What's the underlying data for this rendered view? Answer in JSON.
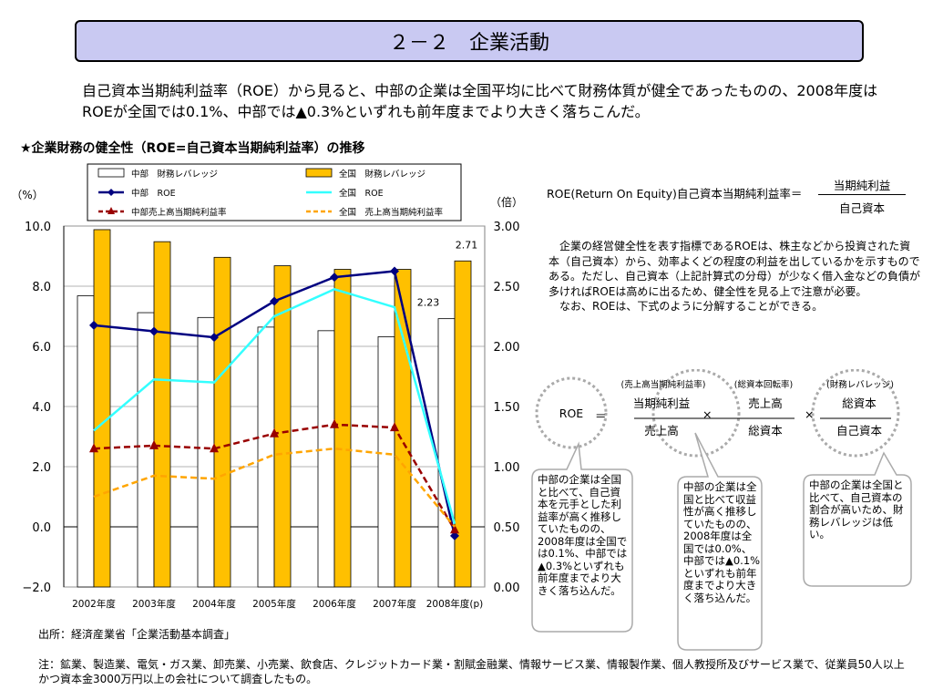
{
  "page": {
    "title": "２－２　企業活動",
    "lead": "自己資本当期純利益率（ROE）から見ると、中部の企業は全国平均に比べて財務体質が健全であったものの、2008年度はROEが全国では0.1%、中部では▲0.3%といずれも前年度までより大きく落ちこんだ。",
    "chart_heading": "★企業財務の健全性（ROE=自己資本当期純利益率）の推移",
    "source": "出所：経済産業省「企業活動基本調査」",
    "note": "注：鉱業、製造業、電気・ガス業、卸売業、小売業、飲食店、クレジットカード業・割賦金融業、情報サービス業、情報製作業、個人教授所及びサービス業で、従業員50人以上かつ資本金3000万円以上の会社について調査したもの。"
  },
  "formula": {
    "definition": "ROE(Return On Equity)自己資本当期純利益率＝",
    "numerator": "当期純利益",
    "denominator": "自己資本",
    "explanation_1": "　企業の経営健全性を表す指標であるROEは、株主などから投資された資本（自己資本）から、効率よくどの程度の利益を出しているかを示すものである。ただし、自己資本（上記計算式の分母）が少なく借入金などの負債が多ければROEは高めに出るため、健全性を見る上で注意が必要。",
    "explanation_2": "　なお、ROEは、下式のように分解することができる。",
    "roe": "ROE",
    "eq": "＝",
    "times": "×",
    "f1_caption": "(売上高当期純利益率)",
    "f1_num": "当期純利益",
    "f1_den": "売上高",
    "f2_caption": "(総資本回転率)",
    "f2_num": "売上高",
    "f2_den": "総資本",
    "f3_caption": "(財務レバレッジ)",
    "f3_num": "総資本",
    "f3_den": "自己資本"
  },
  "bubbles": [
    "中部の企業は全国と比べて、自己資本を元手とした利益率が高く推移していたものの、2008年度は全国では0.1%、中部では▲0.3%といずれも前年度までより大きく落ち込んだ。",
    "中部の企業は全国と比べて収益性が高く推移していたものの、2008年度は全国では0.0%、中部では▲0.1%といずれも前年度までより大きく落ち込んだ。",
    "中部の企業は全国と比べて、自己資本の割合が高いため、財務レバレッジは低い。"
  ],
  "chart_data": {
    "type": "bar",
    "categories": [
      "2002年度",
      "2003年度",
      "2004年度",
      "2005年度",
      "2006年度",
      "2007年度",
      "2008年度(p)"
    ],
    "y_left": {
      "unit": "（%）",
      "range": [
        -2.0,
        10.0
      ],
      "ticks": [
        "10.0",
        "8.0",
        "6.0",
        "4.0",
        "2.0",
        "0.0",
        "−2.0"
      ]
    },
    "y_right": {
      "unit": "（倍）",
      "range": [
        0.0,
        3.0
      ],
      "ticks": [
        "3.00",
        "2.50",
        "2.00",
        "1.50",
        "1.00",
        "0.50",
        "0.00"
      ]
    },
    "series": [
      {
        "name": "中部　財務レバレッジ",
        "kind": "bar",
        "axis": "right",
        "color": "#ffffff",
        "values": [
          2.42,
          2.28,
          2.24,
          2.16,
          2.13,
          2.08,
          2.23
        ]
      },
      {
        "name": "全国　財務レバレッジ",
        "kind": "bar",
        "axis": "right",
        "color": "#ffc000",
        "values": [
          2.97,
          2.87,
          2.74,
          2.67,
          2.64,
          2.64,
          2.71
        ]
      },
      {
        "name": "中部　ROE",
        "kind": "line",
        "axis": "left",
        "color": "#000080",
        "marker": "diamond",
        "values": [
          6.7,
          6.5,
          6.3,
          7.5,
          8.3,
          8.5,
          -0.3
        ]
      },
      {
        "name": "全国　ROE",
        "kind": "line",
        "axis": "left",
        "color": "#33ffff",
        "marker": "none",
        "values": [
          3.2,
          4.9,
          4.8,
          7.0,
          7.9,
          7.3,
          0.1
        ]
      },
      {
        "name": "中部売上高当期純利益率",
        "kind": "line",
        "axis": "left",
        "color": "#990000",
        "marker": "triangle",
        "dash": true,
        "values": [
          2.6,
          2.7,
          2.6,
          3.1,
          3.4,
          3.3,
          -0.1
        ]
      },
      {
        "name": "全国　売上高当期純利益率",
        "kind": "line",
        "axis": "left",
        "color": "#ffa500",
        "marker": "none",
        "dash": true,
        "values": [
          1.0,
          1.7,
          1.6,
          2.4,
          2.6,
          2.4,
          0.0
        ]
      }
    ],
    "data_labels": [
      {
        "series": "全国　財務レバレッジ",
        "category": "2008年度(p)",
        "text": "2.71"
      },
      {
        "series": "中部　財務レバレッジ",
        "category": "2008年度(p)",
        "text": "2.23"
      }
    ],
    "legend_position": "top"
  }
}
